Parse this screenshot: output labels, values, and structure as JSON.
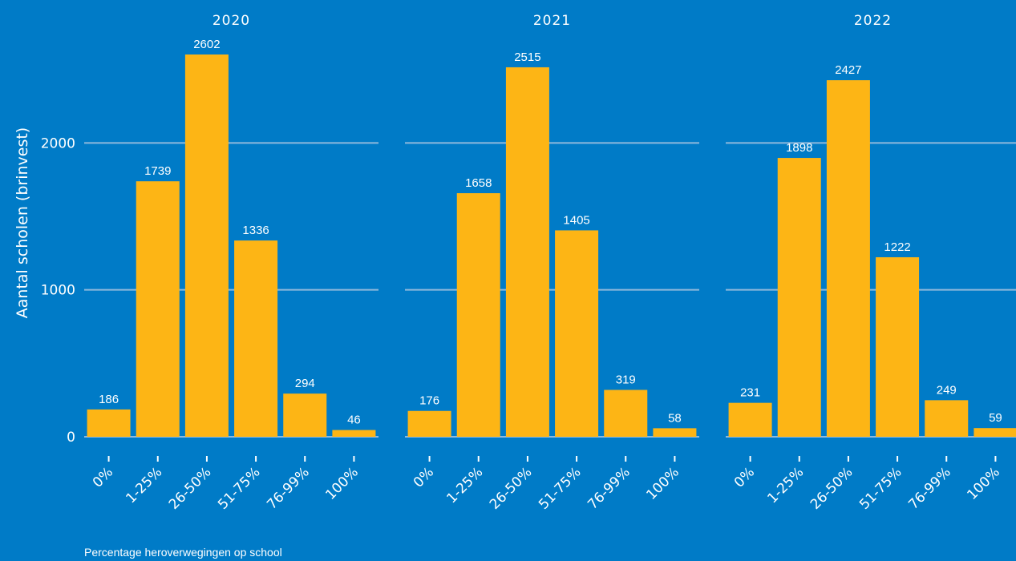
{
  "chart_data": {
    "type": "bar",
    "ylabel": "Aantal scholen (brinvest)",
    "caption": "Percentage heroverwegingen op school",
    "ylim": [
      0,
      2602
    ],
    "yticks": [
      0,
      1000,
      2000
    ],
    "grid": true,
    "categories": [
      "0%",
      "1-25%",
      "26-50%",
      "51-75%",
      "76-99%",
      "100%"
    ],
    "bar_color": "#FDB515",
    "background_color": "#007BC7",
    "facets": [
      {
        "title": "2020",
        "values": [
          186,
          1739,
          2602,
          1336,
          294,
          46
        ]
      },
      {
        "title": "2021",
        "values": [
          176,
          1658,
          2515,
          1405,
          319,
          58
        ]
      },
      {
        "title": "2022",
        "values": [
          231,
          1898,
          2427,
          1222,
          249,
          59
        ]
      }
    ]
  }
}
